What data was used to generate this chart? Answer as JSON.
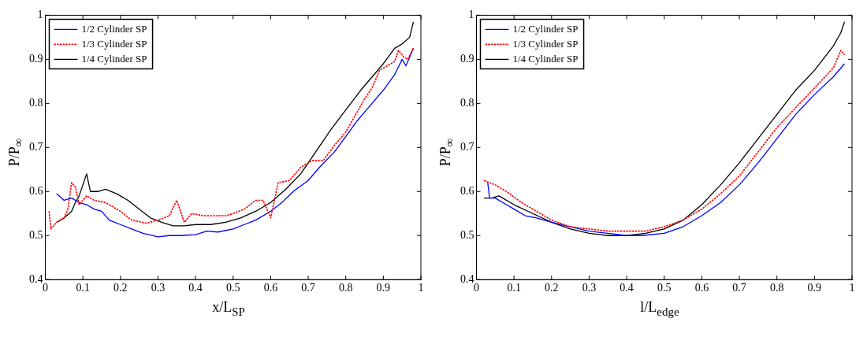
{
  "chart_data": [
    {
      "type": "line",
      "xlabel": "x/L$_{SP}$",
      "ylabel": "P/P$_{∞}$",
      "xlim": [
        0,
        1
      ],
      "ylim": [
        0.4,
        1
      ],
      "xticks": [
        0,
        0.1,
        0.2,
        0.3,
        0.4,
        0.5,
        0.6,
        0.7,
        0.8,
        0.9,
        1
      ],
      "yticks": [
        0.4,
        0.5,
        0.6,
        0.7,
        0.8,
        0.9,
        1
      ],
      "grid": false,
      "legend": "top left",
      "marker": "none",
      "series": [
        {
          "name": "1/2 Cylinder SP",
          "color": "#0000ff",
          "line_style": "solid",
          "x": [
            0.03,
            0.05,
            0.07,
            0.09,
            0.11,
            0.13,
            0.15,
            0.17,
            0.2,
            0.23,
            0.26,
            0.3,
            0.33,
            0.36,
            0.4,
            0.43,
            0.46,
            0.5,
            0.53,
            0.56,
            0.6,
            0.63,
            0.66,
            0.7,
            0.73,
            0.77,
            0.8,
            0.83,
            0.86,
            0.9,
            0.93,
            0.95,
            0.96,
            0.98
          ],
          "values": [
            0.595,
            0.58,
            0.585,
            0.575,
            0.57,
            0.56,
            0.555,
            0.535,
            0.525,
            0.515,
            0.505,
            0.497,
            0.5,
            0.5,
            0.502,
            0.51,
            0.508,
            0.515,
            0.525,
            0.535,
            0.555,
            0.575,
            0.6,
            0.625,
            0.655,
            0.69,
            0.725,
            0.76,
            0.79,
            0.83,
            0.865,
            0.9,
            0.885,
            0.925
          ]
        },
        {
          "name": "1/3 Cylinder SP",
          "color": "#ff0000",
          "line_style": "dotted",
          "x": [
            0.01,
            0.015,
            0.03,
            0.05,
            0.06,
            0.07,
            0.08,
            0.09,
            0.11,
            0.13,
            0.16,
            0.2,
            0.23,
            0.27,
            0.3,
            0.33,
            0.35,
            0.37,
            0.39,
            0.42,
            0.45,
            0.48,
            0.5,
            0.53,
            0.56,
            0.58,
            0.59,
            0.6,
            0.62,
            0.65,
            0.68,
            0.71,
            0.74,
            0.77,
            0.8,
            0.83,
            0.85,
            0.87,
            0.89,
            0.91,
            0.93,
            0.94,
            0.955,
            0.965,
            0.98
          ],
          "values": [
            0.555,
            0.515,
            0.53,
            0.54,
            0.56,
            0.62,
            0.61,
            0.57,
            0.59,
            0.58,
            0.575,
            0.555,
            0.535,
            0.528,
            0.535,
            0.545,
            0.58,
            0.53,
            0.55,
            0.545,
            0.545,
            0.545,
            0.55,
            0.56,
            0.58,
            0.58,
            0.56,
            0.54,
            0.62,
            0.625,
            0.655,
            0.67,
            0.67,
            0.705,
            0.735,
            0.78,
            0.81,
            0.835,
            0.875,
            0.885,
            0.895,
            0.92,
            0.905,
            0.9,
            0.925
          ]
        },
        {
          "name": "1/4 Cylinder SP",
          "color": "#000000",
          "line_style": "solid",
          "x": [
            0.03,
            0.05,
            0.07,
            0.08,
            0.09,
            0.1,
            0.11,
            0.12,
            0.14,
            0.16,
            0.19,
            0.22,
            0.25,
            0.28,
            0.31,
            0.34,
            0.37,
            0.4,
            0.44,
            0.48,
            0.52,
            0.56,
            0.6,
            0.64,
            0.68,
            0.72,
            0.76,
            0.8,
            0.84,
            0.87,
            0.9,
            0.93,
            0.95,
            0.97,
            0.98
          ],
          "values": [
            0.53,
            0.54,
            0.555,
            0.575,
            0.59,
            0.615,
            0.64,
            0.6,
            0.6,
            0.605,
            0.595,
            0.58,
            0.56,
            0.54,
            0.53,
            0.522,
            0.522,
            0.525,
            0.525,
            0.53,
            0.54,
            0.555,
            0.575,
            0.605,
            0.64,
            0.69,
            0.74,
            0.785,
            0.83,
            0.86,
            0.89,
            0.925,
            0.935,
            0.95,
            0.985
          ]
        }
      ]
    },
    {
      "type": "line",
      "xlabel": "l/L$_{edge}$",
      "ylabel": "P/P$_{∞}$",
      "xlim": [
        0,
        1
      ],
      "ylim": [
        0.4,
        1
      ],
      "xticks": [
        0,
        0.1,
        0.2,
        0.3,
        0.4,
        0.5,
        0.6,
        0.7,
        0.8,
        0.9,
        1
      ],
      "yticks": [
        0.4,
        0.5,
        0.6,
        0.7,
        0.8,
        0.9,
        1
      ],
      "grid": false,
      "legend": "top left",
      "marker": "none",
      "series": [
        {
          "name": "1/2 Cylinder SP",
          "color": "#0000ff",
          "line_style": "solid",
          "x": [
            0.03,
            0.035,
            0.05,
            0.07,
            0.1,
            0.13,
            0.16,
            0.2,
            0.25,
            0.3,
            0.35,
            0.4,
            0.44,
            0.5,
            0.55,
            0.6,
            0.65,
            0.7,
            0.75,
            0.8,
            0.85,
            0.9,
            0.95,
            0.98
          ],
          "values": [
            0.62,
            0.585,
            0.585,
            0.575,
            0.56,
            0.545,
            0.54,
            0.53,
            0.52,
            0.51,
            0.505,
            0.5,
            0.5,
            0.505,
            0.52,
            0.545,
            0.575,
            0.615,
            0.665,
            0.72,
            0.775,
            0.82,
            0.86,
            0.89
          ]
        },
        {
          "name": "1/3 Cylinder SP",
          "color": "#ff0000",
          "line_style": "dotted",
          "x": [
            0.02,
            0.05,
            0.08,
            0.12,
            0.16,
            0.2,
            0.25,
            0.3,
            0.35,
            0.4,
            0.45,
            0.5,
            0.55,
            0.6,
            0.65,
            0.7,
            0.75,
            0.8,
            0.85,
            0.9,
            0.95,
            0.97,
            0.98
          ],
          "values": [
            0.625,
            0.615,
            0.6,
            0.575,
            0.555,
            0.535,
            0.52,
            0.515,
            0.51,
            0.51,
            0.51,
            0.52,
            0.535,
            0.56,
            0.595,
            0.635,
            0.69,
            0.745,
            0.79,
            0.835,
            0.88,
            0.92,
            0.91
          ]
        },
        {
          "name": "1/4 Cylinder SP",
          "color": "#000000",
          "line_style": "solid",
          "x": [
            0.02,
            0.04,
            0.06,
            0.1,
            0.15,
            0.2,
            0.25,
            0.3,
            0.35,
            0.4,
            0.45,
            0.5,
            0.55,
            0.6,
            0.65,
            0.7,
            0.75,
            0.8,
            0.85,
            0.9,
            0.95,
            0.97,
            0.98
          ],
          "values": [
            0.585,
            0.585,
            0.59,
            0.57,
            0.55,
            0.53,
            0.515,
            0.505,
            0.5,
            0.5,
            0.505,
            0.515,
            0.535,
            0.57,
            0.615,
            0.665,
            0.72,
            0.775,
            0.83,
            0.875,
            0.93,
            0.96,
            0.985
          ]
        }
      ]
    }
  ]
}
